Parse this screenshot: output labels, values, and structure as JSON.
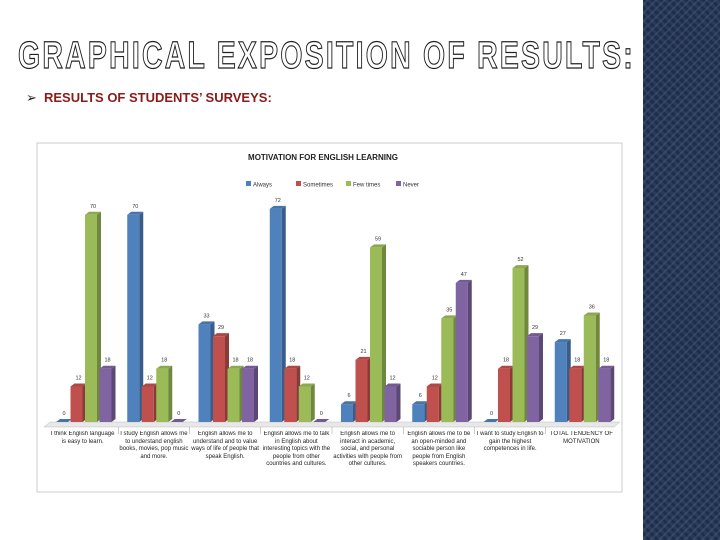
{
  "slide_title": "GRAPHICAL EXPOSITION OF RESULTS:",
  "slide_subtitle": "RESULTS OF STUDENTS’ SURVEYS:",
  "chart_data": {
    "type": "bar",
    "title": "MOTIVATION FOR ENGLISH LEARNING",
    "categories": [
      "I think English language is easy to learn.",
      "I study English allows me to understand english books, movies, pop music and more.",
      "English allows me to understand and to value ways of life of people that speak English.",
      "English allows me to talk in English about interesting topics with the people from other countries and cultures.",
      "English allows me to interact in academic, social, and personal activities with people from other cultures.",
      "English allows me to be an open-minded and sociable person like people from English speakers countries.",
      "I want to study English to gain the highest competences in life.",
      "TOTAL TENDENCY OF MOTIVATION"
    ],
    "series": [
      {
        "name": "Always",
        "color": "#4f81bd",
        "values": [
          0,
          70,
          33,
          72,
          6,
          6,
          0,
          27
        ]
      },
      {
        "name": "Sometimes",
        "color": "#c0504d",
        "values": [
          12,
          12,
          29,
          18,
          21,
          12,
          18,
          18
        ]
      },
      {
        "name": "Few times",
        "color": "#9bbb59",
        "values": [
          70,
          18,
          18,
          12,
          59,
          35,
          52,
          36
        ]
      },
      {
        "name": "Never",
        "color": "#8064a2",
        "values": [
          18,
          0,
          18,
          0,
          12,
          47,
          29,
          18
        ]
      }
    ],
    "ylim": [
      0,
      75
    ],
    "legend": "top"
  }
}
